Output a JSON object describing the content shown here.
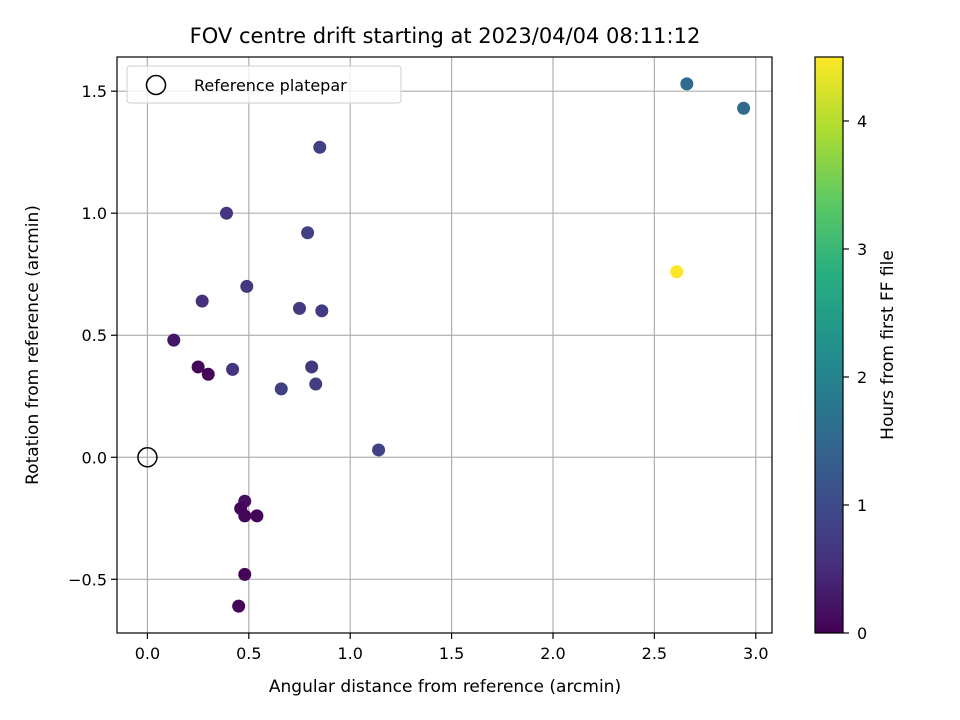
{
  "chart_data": {
    "type": "scatter",
    "title": "FOV centre drift starting at 2023/04/04 08:11:12",
    "xlabel": "Angular distance from reference (arcmin)",
    "ylabel": "Rotation from reference (arcmin)",
    "xlim": [
      -0.15,
      3.08
    ],
    "ylim": [
      -0.72,
      1.64
    ],
    "xticks": [
      0.0,
      0.5,
      1.0,
      1.5,
      2.0,
      2.5,
      3.0
    ],
    "xtick_labels": [
      "0.0",
      "0.5",
      "1.0",
      "1.5",
      "2.0",
      "2.5",
      "3.0"
    ],
    "yticks": [
      -0.5,
      0.0,
      0.5,
      1.0,
      1.5
    ],
    "ytick_labels": [
      "−0.5",
      "0.0",
      "0.5",
      "1.0",
      "1.5"
    ],
    "grid": true,
    "legend": {
      "placement": "top-left",
      "entries": [
        "Reference platepar"
      ]
    },
    "reference_point": {
      "x": 0.0,
      "y": 0.0
    },
    "colorbar": {
      "label": "Hours from first FF file",
      "range": [
        0,
        4.5
      ],
      "ticks": [
        0,
        1,
        2,
        3,
        4
      ],
      "tick_labels": [
        "0",
        "1",
        "2",
        "3",
        "4"
      ],
      "colormap": "viridis"
    },
    "points": [
      {
        "x": 0.13,
        "y": 0.48,
        "c": 0.25
      },
      {
        "x": 0.25,
        "y": 0.37,
        "c": 0.05
      },
      {
        "x": 0.3,
        "y": 0.34,
        "c": 0.05
      },
      {
        "x": 0.27,
        "y": 0.64,
        "c": 0.55
      },
      {
        "x": 0.39,
        "y": 1.0,
        "c": 0.6
      },
      {
        "x": 0.42,
        "y": 0.36,
        "c": 0.6
      },
      {
        "x": 0.49,
        "y": 0.7,
        "c": 0.65
      },
      {
        "x": 0.66,
        "y": 0.28,
        "c": 0.8
      },
      {
        "x": 0.75,
        "y": 0.61,
        "c": 0.7
      },
      {
        "x": 0.79,
        "y": 0.92,
        "c": 0.8
      },
      {
        "x": 0.81,
        "y": 0.37,
        "c": 0.65
      },
      {
        "x": 0.83,
        "y": 0.3,
        "c": 0.75
      },
      {
        "x": 0.85,
        "y": 1.27,
        "c": 0.8
      },
      {
        "x": 0.86,
        "y": 0.6,
        "c": 0.75
      },
      {
        "x": 1.14,
        "y": 0.03,
        "c": 0.85
      },
      {
        "x": 0.48,
        "y": -0.18,
        "c": 0.15
      },
      {
        "x": 0.46,
        "y": -0.21,
        "c": 0.05
      },
      {
        "x": 0.48,
        "y": -0.24,
        "c": 0.05
      },
      {
        "x": 0.54,
        "y": -0.24,
        "c": 0.05
      },
      {
        "x": 0.48,
        "y": -0.48,
        "c": 0.05
      },
      {
        "x": 0.45,
        "y": -0.61,
        "c": 0.05
      },
      {
        "x": 2.61,
        "y": 0.76,
        "c": 4.5
      },
      {
        "x": 2.66,
        "y": 1.53,
        "c": 1.55
      },
      {
        "x": 2.94,
        "y": 1.43,
        "c": 1.55
      }
    ]
  }
}
